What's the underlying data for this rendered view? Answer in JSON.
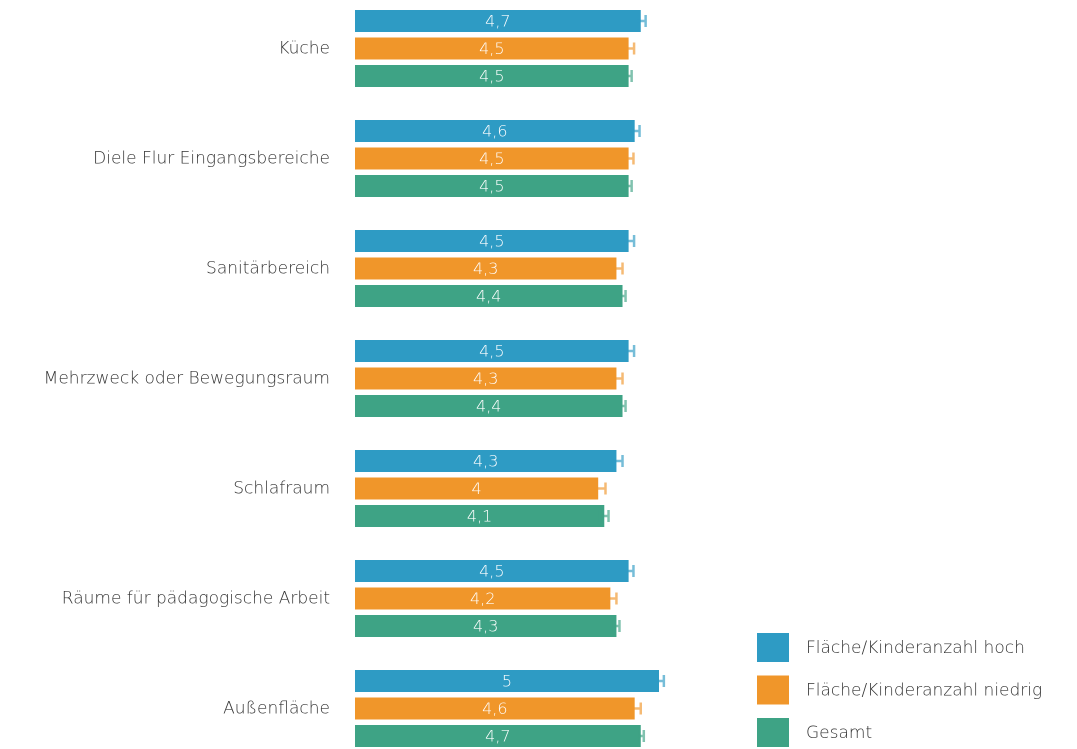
{
  "chart_data": {
    "type": "barh",
    "categories": [
      "Küche",
      "Diele Flur Eingangsbereiche",
      "Sanitärbereich",
      "Mehrzweck oder Bewegungsraum",
      "Schlafraum",
      "Räume für pädagogische Arbeit",
      "Außenfläche"
    ],
    "series": [
      {
        "name": "Fläche/Kinderanzahl hoch",
        "color": "#2e9bc4",
        "values": [
          4.7,
          4.6,
          4.5,
          4.5,
          4.3,
          4.5,
          5
        ],
        "value_labels": [
          "4,7",
          "4,6",
          "4,5",
          "4,5",
          "4,3",
          "4,5",
          "5"
        ],
        "errors": [
          0.08,
          0.08,
          0.09,
          0.09,
          0.1,
          0.08,
          0.08
        ]
      },
      {
        "name": "Fläche/Kinderanzahl niedrig",
        "color": "#f0962a",
        "values": [
          4.5,
          4.5,
          4.3,
          4.3,
          4,
          4.2,
          4.6
        ],
        "value_labels": [
          "4,5",
          "4,5",
          "4,3",
          "4,3",
          "4",
          "4,2",
          "4,6"
        ],
        "errors": [
          0.09,
          0.08,
          0.1,
          0.1,
          0.12,
          0.1,
          0.1
        ]
      },
      {
        "name": "Gesamt",
        "color": "#3ea385",
        "values": [
          4.5,
          4.5,
          4.4,
          4.4,
          4.1,
          4.3,
          4.7
        ],
        "value_labels": [
          "4,5",
          "4,5",
          "4,4",
          "4,4",
          "4,1",
          "4,3",
          "4,7"
        ],
        "errors": [
          0.05,
          0.05,
          0.05,
          0.05,
          0.07,
          0.05,
          0.05
        ]
      }
    ],
    "legend": "bottom-right"
  }
}
